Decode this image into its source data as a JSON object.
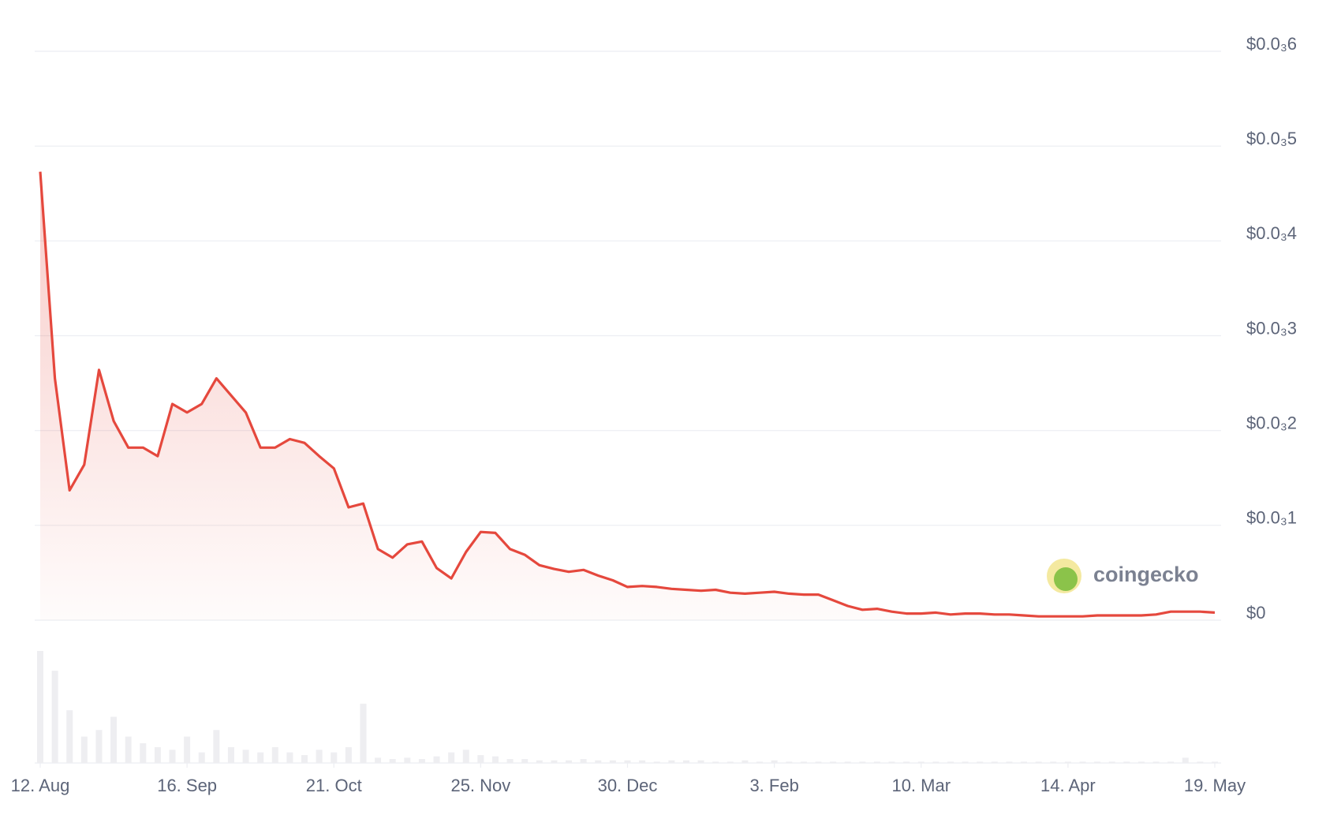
{
  "chart_data": {
    "type": "line",
    "watermark": "coingecko",
    "categories": [
      "12. Aug",
      null,
      null,
      null,
      null,
      null,
      null,
      null,
      null,
      null,
      "16. Sep",
      null,
      null,
      null,
      null,
      null,
      null,
      null,
      null,
      null,
      "21. Oct",
      null,
      null,
      null,
      null,
      null,
      null,
      null,
      null,
      null,
      "25. Nov",
      null,
      null,
      null,
      null,
      null,
      null,
      null,
      null,
      null,
      "30. Dec",
      null,
      null,
      null,
      null,
      null,
      null,
      null,
      null,
      null,
      "3. Feb",
      null,
      null,
      null,
      null,
      null,
      null,
      null,
      null,
      null,
      "10. Mar",
      null,
      null,
      null,
      null,
      null,
      null,
      null,
      null,
      null,
      "14. Apr",
      null,
      null,
      null,
      null,
      null,
      null,
      null,
      null,
      null,
      "19. May"
    ],
    "series": [
      {
        "color": "#e5483d",
        "values": [
          0.000473,
          0.000255,
          0.000137,
          0.000164,
          0.000264,
          0.00021,
          0.000182,
          0.000182,
          0.000173,
          0.000228,
          0.000219,
          0.000228,
          0.000255,
          0.000237,
          0.000219,
          0.000182,
          0.000182,
          0.000191,
          0.000187,
          0.000173,
          0.00016,
          0.000119,
          0.000123,
          7.5e-05,
          6.6e-05,
          8e-05,
          8.3e-05,
          5.5e-05,
          4.4e-05,
          7.2e-05,
          9.3e-05,
          9.2e-05,
          7.5e-05,
          6.9e-05,
          5.8e-05,
          5.4e-05,
          5.1e-05,
          5.3e-05,
          4.7e-05,
          4.2e-05,
          3.5e-05,
          3.6e-05,
          3.5e-05,
          3.3e-05,
          3.2e-05,
          3.1e-05,
          3.2e-05,
          2.9e-05,
          2.8e-05,
          2.9e-05,
          3e-05,
          2.8e-05,
          2.7e-05,
          2.7e-05,
          2.1e-05,
          1.5e-05,
          1.1e-05,
          1.2e-05,
          9e-06,
          7e-06,
          7e-06,
          8e-06,
          6e-06,
          7e-06,
          7e-06,
          6e-06,
          6e-06,
          5e-06,
          4e-06,
          4e-06,
          4e-06,
          4e-06,
          5e-06,
          5e-06,
          5e-06,
          5e-06,
          6e-06,
          9e-06,
          9e-06,
          9e-06,
          8e-06
        ]
      },
      {
        "color": "#eeeef1",
        "values": [
          85,
          70,
          40,
          20,
          25,
          35,
          20,
          15,
          12,
          10,
          20,
          8,
          25,
          12,
          10,
          8,
          12,
          8,
          6,
          10,
          8,
          12,
          45,
          4,
          3,
          4,
          3,
          5,
          8,
          10,
          6,
          5,
          3,
          3,
          2,
          2,
          2,
          3,
          2,
          2,
          2,
          2,
          1,
          2,
          2,
          2,
          1,
          1,
          2,
          1,
          2,
          1,
          1,
          1,
          1,
          1,
          1,
          1,
          1,
          1,
          1,
          1,
          1,
          1,
          1,
          1,
          1,
          1,
          1,
          1,
          1,
          1,
          1,
          1,
          1,
          1,
          1,
          1,
          4,
          1,
          1
        ]
      }
    ],
    "ylim": [
      0,
      0.0006
    ],
    "yticks": [
      {
        "value": 0,
        "label": "$0"
      },
      {
        "value": 0.0001,
        "label": "$0.0₃1"
      },
      {
        "value": 0.0002,
        "label": "$0.0₃2"
      },
      {
        "value": 0.0003,
        "label": "$0.0₃3"
      },
      {
        "value": 0.0004,
        "label": "$0.0₃4"
      },
      {
        "value": 0.0005,
        "label": "$0.0₃5"
      },
      {
        "value": 0.0006,
        "label": "$0.0₃6"
      }
    ],
    "grid": true
  }
}
